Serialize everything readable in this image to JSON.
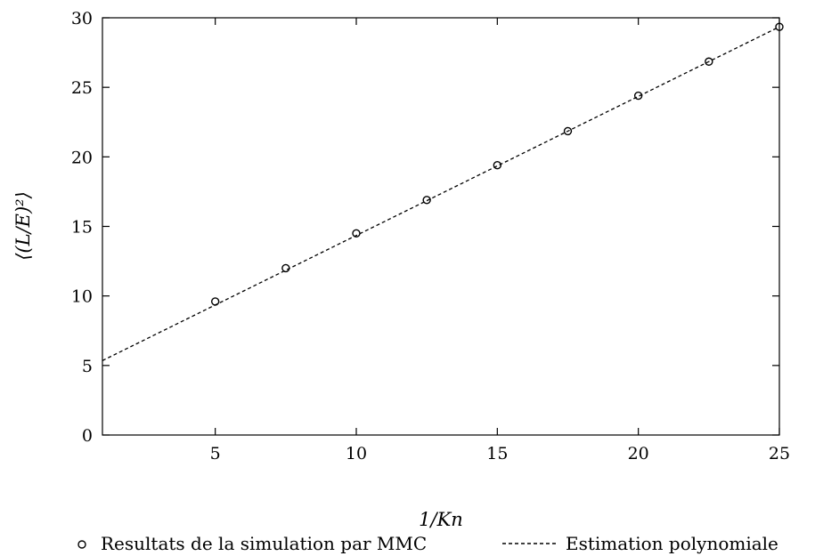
{
  "chart_data": {
    "type": "scatter",
    "xlabel": "1/Kn",
    "ylabel": "⟨(L/E)²⟩",
    "xlim": [
      1,
      25
    ],
    "ylim": [
      0,
      30
    ],
    "x_ticks": [
      5,
      10,
      15,
      20,
      25
    ],
    "y_ticks": [
      0,
      5,
      10,
      15,
      20,
      25,
      30
    ],
    "grid": false,
    "legend_position": "bottom",
    "series": [
      {
        "name": "Resultats de la simulation par MMC",
        "style": "markers",
        "marker": "circle",
        "x": [
          5,
          7.5,
          10,
          12.5,
          15,
          17.5,
          20,
          22.5,
          25
        ],
        "y": [
          9.6,
          12.0,
          14.5,
          16.9,
          19.4,
          21.85,
          24.4,
          26.85,
          29.35
        ]
      },
      {
        "name": "Estimation polynomiale",
        "style": "dashed-line",
        "x": [
          1,
          25
        ],
        "y": [
          5.35,
          29.35
        ]
      }
    ]
  }
}
